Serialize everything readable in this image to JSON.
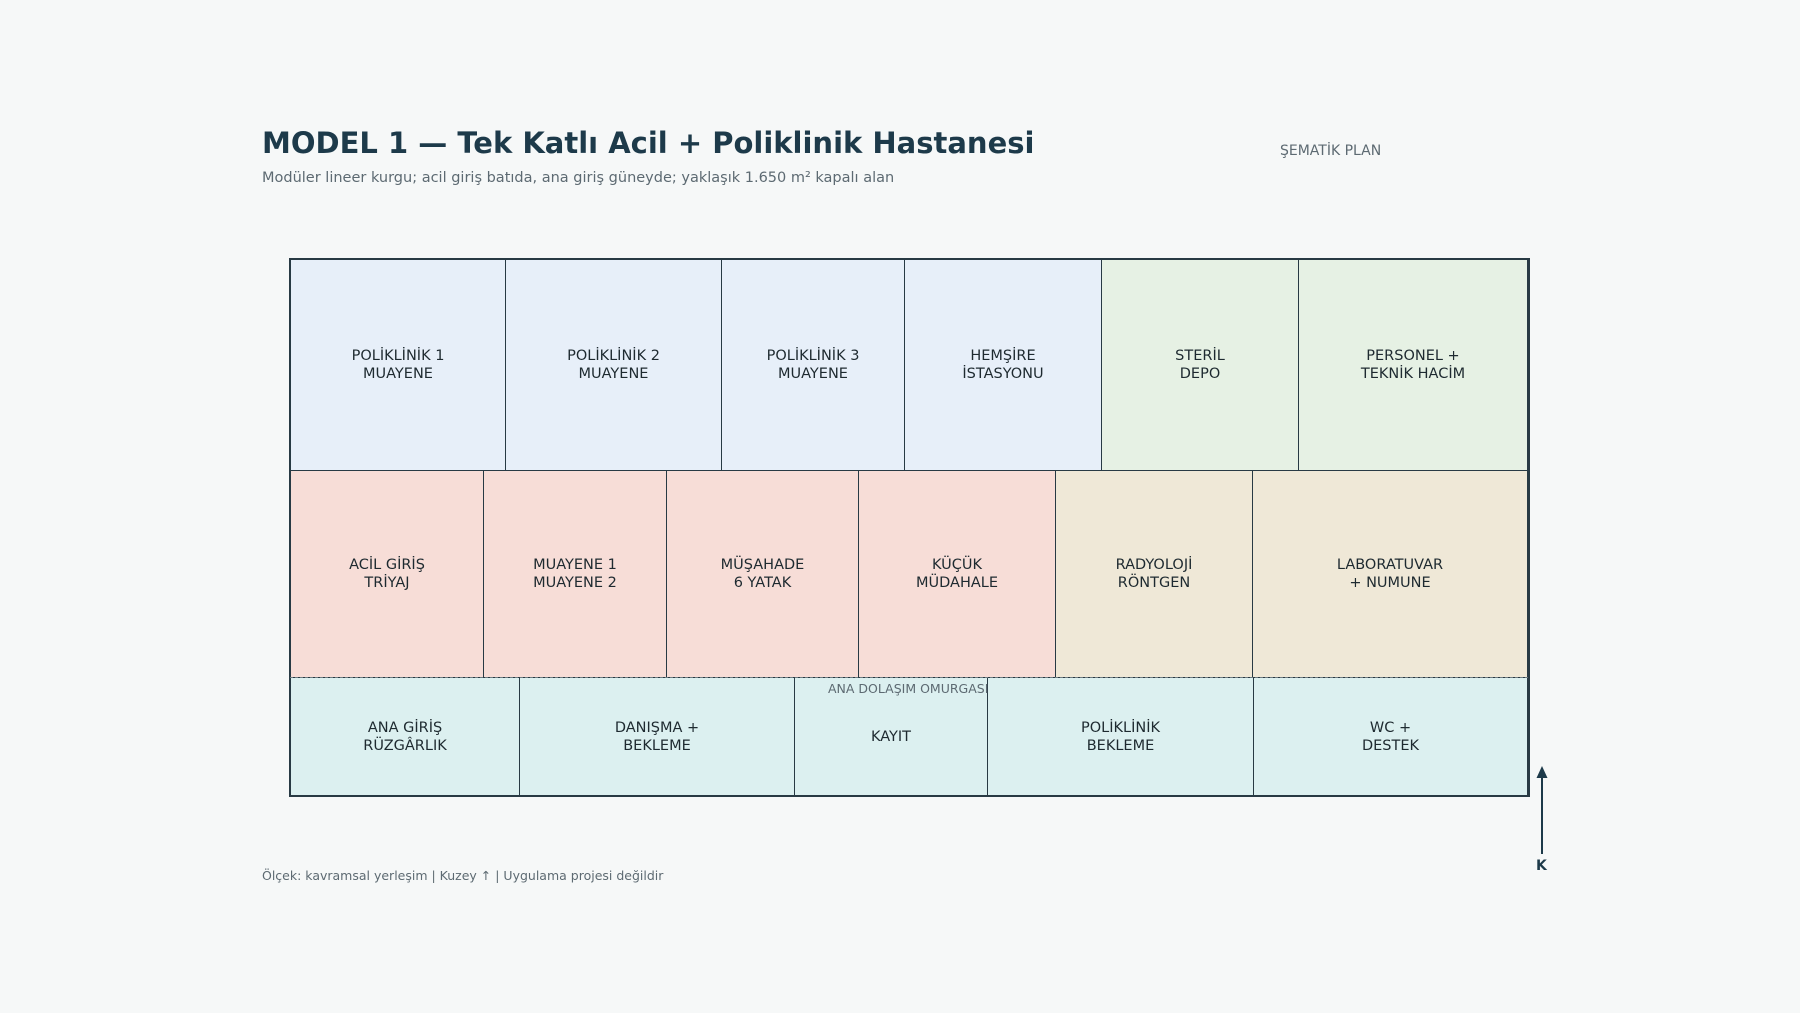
{
  "header": {
    "title": "MODEL 1 — Tek Katlı Acil + Poliklinik Hastanesi",
    "subtitle": "Modüler lineer kurgu; acil giriş batıda, ana giriş güneyde; yaklaşık 1.650 m² kapalı alan",
    "plan_tag": "ŞEMATİK PLAN"
  },
  "colors": {
    "frame": "#283a44",
    "title": "#1d3a4a",
    "outpatient_zone": "#e7eff9",
    "support_zone": "#e6f1e4",
    "emergency_zone": "#f7ddd7",
    "diagnostic_zone": "#efe8d7",
    "public_zone": "#dcf0f0"
  },
  "rooms": {
    "poliklinik_1": "POLİKLİNİK 1\nMUAYENE",
    "poliklinik_2": "POLİKLİNİK 2\nMUAYENE",
    "poliklinik_3": "POLİKLİNİK 3\nMUAYENE",
    "hemsire": "HEMŞİRE\nİSTASYONU",
    "steril_depo": "STERİL\nDEPO",
    "personel": "PERSONEL +\nTEKNİK HACİM",
    "acil_giris": "ACİL GİRİŞ\nTRİYAJ",
    "muayene": "MUAYENE 1\nMUAYENE 2",
    "musahade": "MÜŞAHADE\n6 YATAK",
    "kucuk_mudahale": "KÜÇÜK\nMÜDAHALE",
    "radyoloji": "RADYOLOJİ\nRÖNTGEN",
    "laboratuvar": "LABORATUVAR\n+ NUMUNE",
    "ana_giris": "ANA GİRİŞ\nRÜZGÂRLIK",
    "danisma": "DANIŞMA +\nBEKLEME",
    "kayit": "KAYIT",
    "poliklinik_bekleme": "POLİKLİNİK\nBEKLEME",
    "wc": "WC +\nDESTEK"
  },
  "spine_label": "ANA DOLAŞIM OMURGASI",
  "footer_note": "Ölçek: kavramsal yerleşim  |  Kuzey ↑  |  Uygulama projesi değildir",
  "north_label": "K"
}
